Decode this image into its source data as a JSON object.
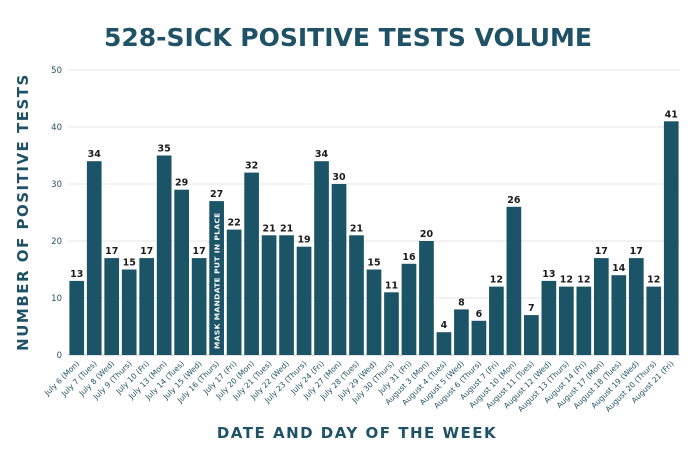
{
  "chart_data": {
    "type": "bar",
    "title": "528-SICK POSITIVE TESTS VOLUME",
    "xlabel": "DATE AND DAY OF THE WEEK",
    "ylabel": "NUMBER OF POSITIVE TESTS",
    "ylim": [
      0,
      50
    ],
    "yticks": [
      0,
      10,
      20,
      30,
      40,
      50
    ],
    "grid": true,
    "legend": "none",
    "bar_color": "#1b5466",
    "categories": [
      "July 6 (Mon)",
      "July 7 (Tues)",
      "July 8 (Wed)",
      "July 9 (Thurs)",
      "July 10 (Fri)",
      "July 13 (Mon)",
      "July 14 (Tues)",
      "July 15 (Wed)",
      "July 16 (Thurs)",
      "July 17 (Fri)",
      "July 20 (Mon)",
      "July 21 (Tues)",
      "July 22 (Wed)",
      "July 23 (Thurs)",
      "July 24 (Fri)",
      "July 27 (Mon)",
      "July 28 (Tues)",
      "July 29 (Wed)",
      "July 30 (Thurs)",
      "July 31 (Fri)",
      "August 3 (Mon)",
      "August 4 (Tues)",
      "August 5 (Wed)",
      "August 6 (Thurs)",
      "August 7 (Fri)",
      "August 10 (Mon)",
      "August 11 (Tues)",
      "August 12 (Wed)",
      "August 13 (Thurs)",
      "August 14 (Fri)",
      "August 17 (Mon)",
      "August 18 (Tues)",
      "August 19 (Wed)",
      "August 20 (Thurs)",
      "August 21 (Fri)"
    ],
    "values": [
      13,
      34,
      17,
      15,
      17,
      35,
      29,
      17,
      27,
      22,
      32,
      21,
      21,
      19,
      34,
      30,
      21,
      15,
      11,
      16,
      20,
      4,
      8,
      6,
      12,
      26,
      7,
      13,
      12,
      12,
      17,
      14,
      17,
      12,
      41
    ],
    "annotations": [
      {
        "category": "July 16 (Thurs)",
        "text": "MASK MANDATE PUT IN PLACE"
      }
    ]
  }
}
